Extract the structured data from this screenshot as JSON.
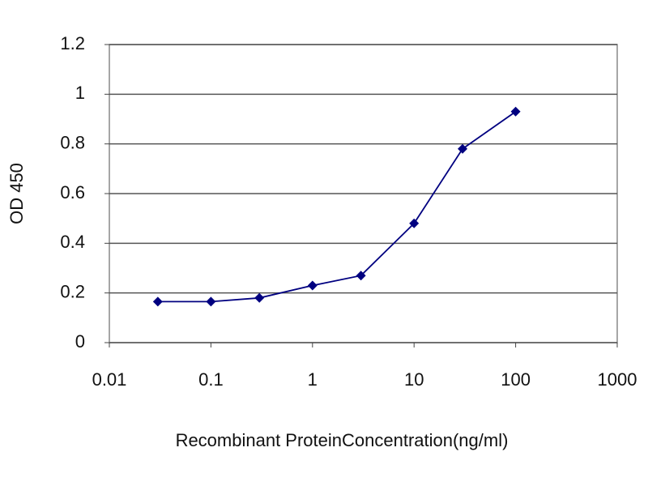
{
  "chart_data": {
    "type": "line",
    "xlabel": "Recombinant ProteinConcentration(ng/ml)",
    "ylabel": "OD 450",
    "xscale": "log",
    "xlim": [
      0.01,
      1000
    ],
    "xticks": [
      0.01,
      0.1,
      1,
      10,
      100,
      1000
    ],
    "ylim": [
      0,
      1.2
    ],
    "yticks": [
      0,
      0.2,
      0.4,
      0.6,
      0.8,
      1,
      1.2
    ],
    "grid": true,
    "series": [
      {
        "name": "OD",
        "color": "#000080",
        "x": [
          0.03,
          0.1,
          0.3,
          1,
          3,
          10,
          30,
          100
        ],
        "values": [
          0.165,
          0.165,
          0.18,
          0.23,
          0.27,
          0.48,
          0.78,
          0.93
        ]
      }
    ]
  }
}
